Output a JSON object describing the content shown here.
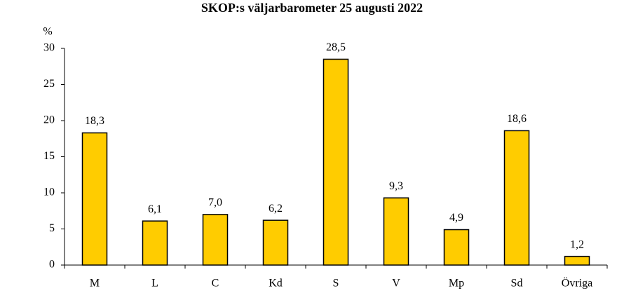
{
  "chart_data": {
    "type": "bar",
    "title": "SKOP:s väljarbarometer 25 augusti 2022",
    "y_label": "%",
    "categories": [
      "M",
      "L",
      "C",
      "Kd",
      "S",
      "V",
      "Mp",
      "Sd",
      "Övriga"
    ],
    "values": [
      18.3,
      6.1,
      7.0,
      6.2,
      28.5,
      9.3,
      4.9,
      18.6,
      1.2
    ],
    "value_labels": [
      "18,3",
      "6,1",
      "7,0",
      "6,2",
      "28,5",
      "9,3",
      "4,9",
      "18,6",
      "1,2"
    ],
    "color": "#ffcc00",
    "ylim": [
      0,
      30
    ],
    "yticks": [
      0,
      5,
      10,
      15,
      20,
      25,
      30
    ],
    "grid": false
  }
}
